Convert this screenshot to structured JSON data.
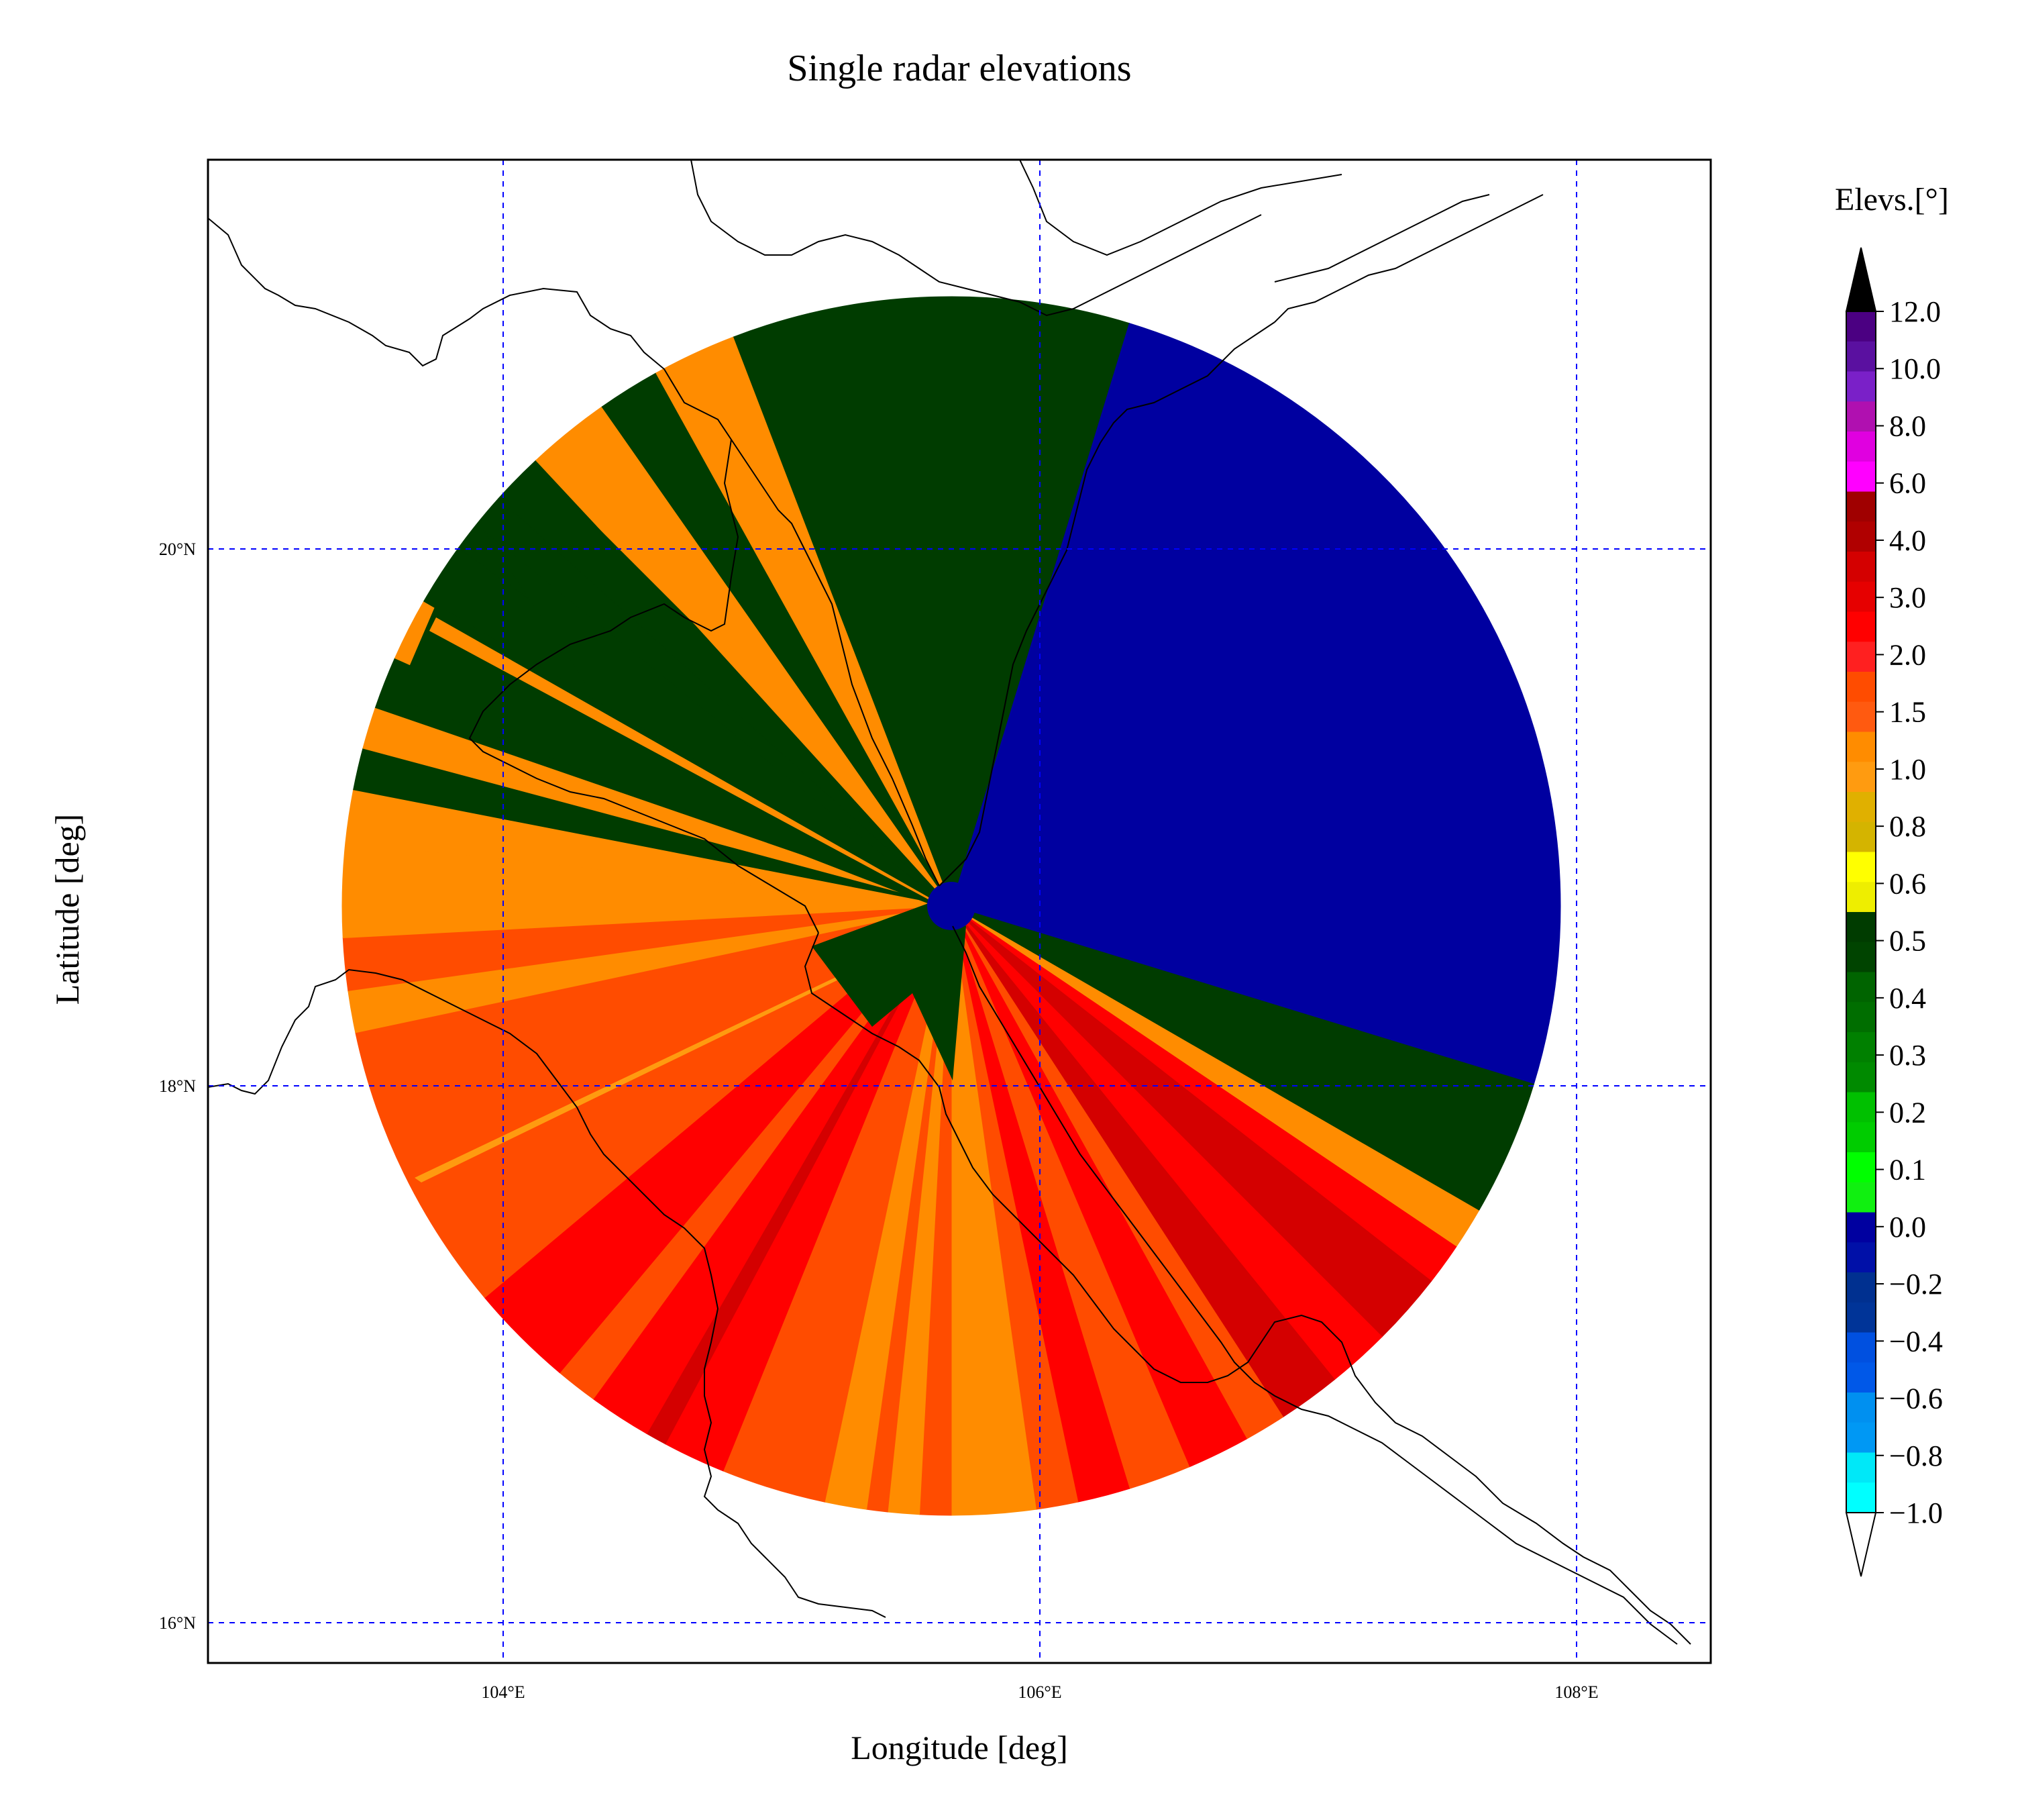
{
  "title": "Single radar elevations",
  "x_axis_label": "Longitude [deg]",
  "y_axis_label": "Latitude [deg]",
  "colorbar_title": "Elevs.[°]",
  "lon_ticks": [
    {
      "value": 104,
      "label": "104°E"
    },
    {
      "value": 106,
      "label": "106°E"
    },
    {
      "value": 108,
      "label": "108°E"
    }
  ],
  "lat_ticks": [
    {
      "value": 20,
      "label": "20°N"
    },
    {
      "value": 18,
      "label": "18°N"
    },
    {
      "value": 16,
      "label": "16°N"
    }
  ],
  "colorbar": {
    "tick_labels": [
      "12.0",
      "10.0",
      "8.0",
      "6.0",
      "4.0",
      "3.0",
      "2.0",
      "1.5",
      "1.0",
      "0.8",
      "0.6",
      "0.5",
      "0.4",
      "0.3",
      "0.2",
      "0.1",
      "0.0",
      "−0.2",
      "−0.4",
      "−0.6",
      "−0.8",
      "−1.0"
    ],
    "bin_colors_top_to_bottom": [
      "#4b0082",
      "#5a10a0",
      "#7a20c8",
      "#b010b0",
      "#e000e0",
      "#ff00ff",
      "#a00000",
      "#b00000",
      "#d40000",
      "#e60000",
      "#ff0000",
      "#ff2020",
      "#ff4c00",
      "#ff5a10",
      "#ff8c00",
      "#ff9b10",
      "#e0b000",
      "#d4b400",
      "#ffff00",
      "#eeee00",
      "#003c00",
      "#004400",
      "#006400",
      "#006e00",
      "#008000",
      "#008a00",
      "#00c000",
      "#00cc00",
      "#00ff00",
      "#10f010",
      "#0000a0",
      "#0010a8",
      "#003090",
      "#003498",
      "#0050e0",
      "#0058e8",
      "#0090f0",
      "#0098f4",
      "#00e8f8",
      "#00ffff"
    ],
    "extend_max_color": "#000000",
    "extend_min_color": "#ffffff"
  },
  "chart_data": {
    "type": "heatmap",
    "title": "Single radar elevations",
    "xlabel": "Longitude [deg]",
    "ylabel": "Latitude [deg]",
    "xlim": [
      102.9,
      108.5
    ],
    "ylim": [
      15.85,
      21.45
    ],
    "grid": true,
    "radar_center": {
      "lon": 105.67,
      "lat": 18.67
    },
    "coverage_radius_deg": 2.27,
    "units": "degrees of elevation",
    "elevation_sectors": [
      {
        "az_from": 339,
        "az_to": 17,
        "elevation": 0.4,
        "color": "#003c00"
      },
      {
        "az_from": 17,
        "az_to": 107,
        "elevation": -0.2,
        "color": "#0000a0"
      },
      {
        "az_from": 107,
        "az_to": 120,
        "elevation": 0.4,
        "color": "#003c00"
      },
      {
        "az_from": 120,
        "az_to": 124,
        "elevation": 1.0,
        "color": "#ff8c00"
      },
      {
        "az_from": 124,
        "az_to": 128,
        "elevation": 2.0,
        "color": "#ff0000"
      },
      {
        "az_from": 128,
        "az_to": 135,
        "elevation": 3.0,
        "color": "#d40000"
      },
      {
        "az_from": 135,
        "az_to": 141,
        "elevation": 2.0,
        "color": "#ff0000"
      },
      {
        "az_from": 141,
        "az_to": 147,
        "elevation": 3.0,
        "color": "#d40000"
      },
      {
        "az_from": 147,
        "az_to": 151,
        "elevation": 1.5,
        "color": "#ff4c00"
      },
      {
        "az_from": 151,
        "az_to": 157,
        "elevation": 2.0,
        "color": "#ff0000"
      },
      {
        "az_from": 157,
        "az_to": 163,
        "elevation": 1.5,
        "color": "#ff4c00"
      },
      {
        "az_from": 163,
        "az_to": 168,
        "elevation": 2.0,
        "color": "#ff0000"
      },
      {
        "az_from": 168,
        "az_to": 172,
        "elevation": 1.5,
        "color": "#ff4c00"
      },
      {
        "az_from": 172,
        "az_to": 180,
        "elevation": 1.0,
        "color": "#ff8c00"
      },
      {
        "az_from": 180,
        "az_to": 183,
        "elevation": 1.5,
        "color": "#ff4c00"
      },
      {
        "az_from": 183,
        "az_to": 186,
        "elevation": 1.0,
        "color": "#ff8c00"
      },
      {
        "az_from": 186,
        "az_to": 188,
        "elevation": 1.5,
        "color": "#ff4c00"
      },
      {
        "az_from": 188,
        "az_to": 192,
        "elevation": 1.0,
        "color": "#ff8c00"
      },
      {
        "az_from": 192,
        "az_to": 202,
        "elevation": 1.5,
        "color": "#ff4c00"
      },
      {
        "az_from": 202,
        "az_to": 208,
        "elevation": 2.0,
        "color": "#ff0000"
      },
      {
        "az_from": 208,
        "az_to": 210,
        "elevation": 3.0,
        "color": "#d40000"
      },
      {
        "az_from": 210,
        "az_to": 216,
        "elevation": 2.0,
        "color": "#ff0000"
      },
      {
        "az_from": 216,
        "az_to": 220,
        "elevation": 1.5,
        "color": "#ff4c00"
      },
      {
        "az_from": 220,
        "az_to": 230,
        "elevation": 2.0,
        "color": "#ff0000"
      },
      {
        "az_from": 230,
        "az_to": 258,
        "elevation": 1.5,
        "color": "#ff4c00"
      },
      {
        "az_from": 258,
        "az_to": 262,
        "elevation": 1.0,
        "color": "#ff8c00"
      },
      {
        "az_from": 262,
        "az_to": 267,
        "elevation": 1.5,
        "color": "#ff4c00"
      },
      {
        "az_from": 267,
        "az_to": 276,
        "elevation": 1.0,
        "color": "#ff8c00"
      },
      {
        "az_from": 276,
        "az_to": 281,
        "elevation": 1.0,
        "color": "#ff8c00"
      },
      {
        "az_from": 281,
        "az_to": 285,
        "elevation": 0.4,
        "color": "#003c00"
      },
      {
        "az_from": 285,
        "az_to": 289,
        "elevation": 1.0,
        "color": "#ff8c00"
      },
      {
        "az_from": 289,
        "az_to": 294,
        "elevation": 0.4,
        "color": "#003c00"
      },
      {
        "az_from": 294,
        "az_to": 300,
        "elevation": 1.0,
        "color": "#ff8c00"
      },
      {
        "az_from": 300,
        "az_to": 306,
        "elevation": 0.4,
        "color": "#003c00"
      },
      {
        "az_from": 306,
        "az_to": 312,
        "elevation": 0.4,
        "color": "#003c00"
      },
      {
        "az_from": 312,
        "az_to": 317,
        "elevation": 0.4,
        "color": "#003c00"
      },
      {
        "az_from": 317,
        "az_to": 325,
        "elevation": 1.0,
        "color": "#ff8c00"
      },
      {
        "az_from": 325,
        "az_to": 331,
        "elevation": 0.4,
        "color": "#003c00"
      },
      {
        "az_from": 331,
        "az_to": 339,
        "elevation": 1.0,
        "color": "#ff8c00"
      }
    ]
  }
}
